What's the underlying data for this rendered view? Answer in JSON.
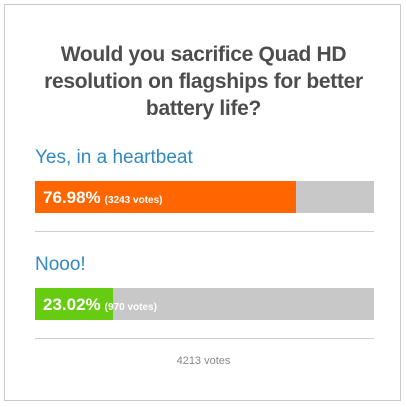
{
  "poll": {
    "question": "Would you sacrifice Quad HD resolution on flagships for better battery life?",
    "options": [
      {
        "label": "Yes, in a heartbeat",
        "percent": 76.98,
        "percent_label": "76.98%",
        "votes_label": "(3243 votes)",
        "color": "#ff6600"
      },
      {
        "label": "Nooo!",
        "percent": 23.02,
        "percent_label": "23.02%",
        "votes_label": "(970 votes)",
        "color": "#66cc11"
      }
    ],
    "total_label": "4213 votes"
  }
}
